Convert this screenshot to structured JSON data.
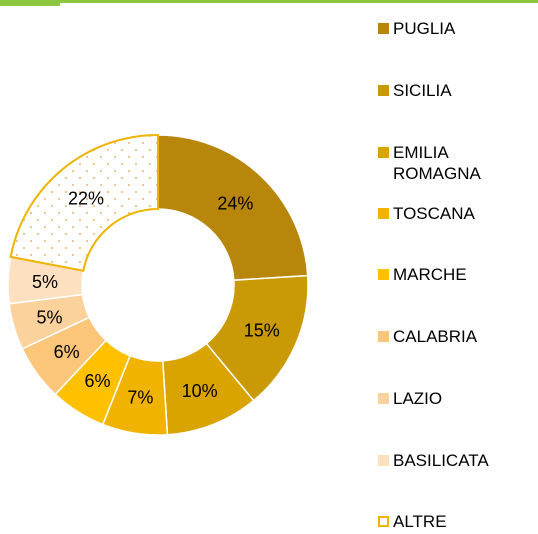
{
  "chart_data": {
    "type": "donut",
    "categories": [
      "PUGLIA",
      "SICILIA",
      "EMILIA ROMAGNA",
      "TOSCANA",
      "MARCHE",
      "CALABRIA",
      "LAZIO",
      "BASILICATA",
      "ALTRE"
    ],
    "values": [
      24,
      15,
      10,
      7,
      6,
      6,
      5,
      5,
      22
    ],
    "value_labels": [
      "24%",
      "15%",
      "10%",
      "7%",
      "6%",
      "6%",
      "5%",
      "5%",
      "22%"
    ],
    "colors": [
      "#b8860b",
      "#c99a06",
      "#d9a400",
      "#efb300",
      "#ffc000",
      "#fbc57a",
      "#fcd29c",
      "#fde0c0",
      "#ffffff"
    ],
    "legend": "right"
  }
}
